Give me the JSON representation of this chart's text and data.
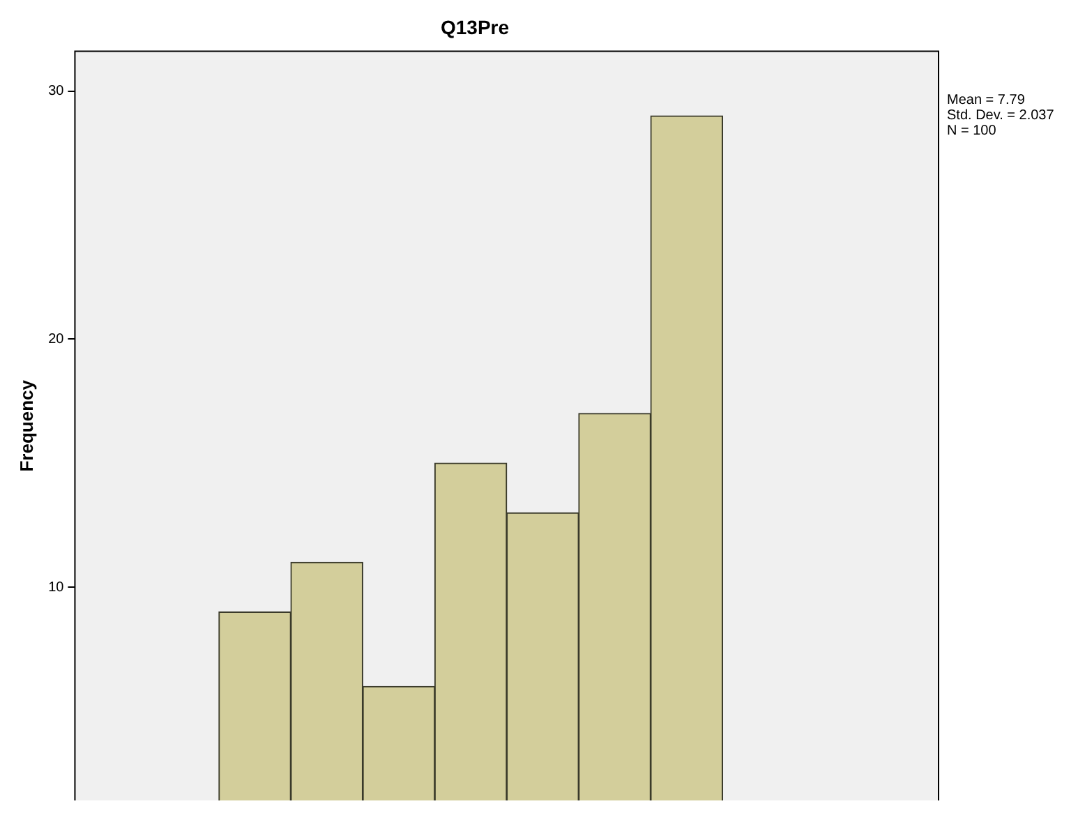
{
  "chart_data": {
    "type": "bar",
    "title": "Q13Pre",
    "ylabel": "Frequency",
    "categories": [
      null,
      null,
      null,
      null,
      null,
      null,
      null,
      null,
      null,
      null,
      null,
      null
    ],
    "values": [
      null,
      null,
      9,
      11,
      6,
      15,
      13,
      17,
      29,
      null,
      null,
      null
    ],
    "color": "#d3ce9b",
    "ylim": [
      1.4,
      31.6
    ],
    "yticks": [
      10,
      20,
      30
    ],
    "grid": false,
    "legend": false,
    "tick_labels": "y",
    "annotations": [
      "Mean = 7.79",
      "Std. Dev. = 2.037",
      "N = 100"
    ]
  }
}
